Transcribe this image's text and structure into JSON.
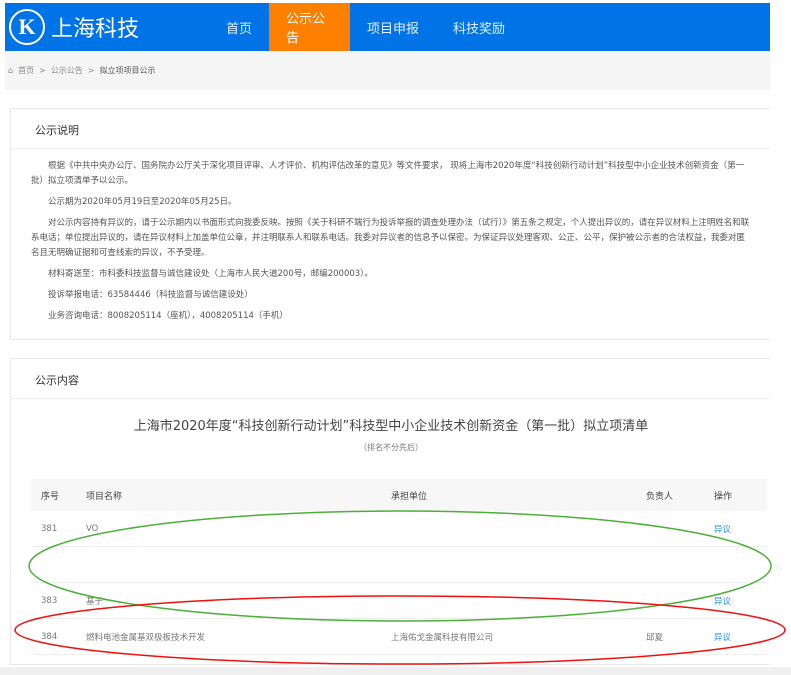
{
  "header": {
    "logo_letter": "K",
    "site_name": "上海科技",
    "nav": [
      "首页",
      "公示公告",
      "项目申报",
      "科技奖励"
    ],
    "active_nav": "公示公告"
  },
  "breadcrumb": [
    "首页",
    "公示公告",
    "拟立项项目公示"
  ],
  "notice": {
    "title": "公示说明",
    "paragraphs": [
      "根据《中共中央办公厅、国务院办公厅关于深化项目评审、人才评价、机构评估改革的意见》等文件要求， 现将上海市2020年度“科技创新行动计划”科技型中小企业技术创新资金（第一批）拟立项清单予以公示。",
      "公示期为2020年05月19日至2020年05月25日。",
      "对公示内容持有异议的，请于公示期内以书面形式向我委反映。按照《关于科研不端行为投诉举报的调查处理办法（试行）》第五条之规定，个人提出异议的，请在异议材料上注明姓名和联系电话；单位提出异议的，请在异议材料上加盖单位公章，并注明联系人和联系电话。我委对异议者的信息予以保密。为保证异议处理客观、公正、公平，保护被公示者的合法权益，我委对匿名且无明确证据和可查线索的异议，不予受理。",
      "材料寄送至：市科委科技监督与诚信建设处（上海市人民大道200号，邮编200003）。",
      "投诉举报电话：63584446（科技监督与诚信建设处）",
      "业务咨询电话：8008205114（座机），4008205114（手机）"
    ]
  },
  "content": {
    "title": "公示内容",
    "list_title": "上海市2020年度“科技创新行动计划”科技型中小企业技术创新资金（第一批）拟立项清单",
    "list_subtitle": "（排名不分先后）",
    "columns": [
      "序号",
      "项目名称",
      "承担单位",
      "负责人",
      "操作"
    ],
    "rows": [
      {
        "no": "381",
        "name": "VO",
        "unit": "",
        "person": "",
        "action": "异议"
      },
      {
        "no": "",
        "name": "",
        "unit": "",
        "person": "",
        "action": ""
      },
      {
        "no": "383",
        "name": "基于",
        "unit": "",
        "person": "",
        "action": "异议"
      },
      {
        "no": "384",
        "name": "燃料电池金属基双极板技术开发",
        "unit": "上海佑戈金属科技有限公司",
        "person": "邱夏",
        "action": "异议"
      }
    ]
  },
  "annotations": {
    "green_ellipse": "#4caf3a",
    "red_ellipse": "#ee1111"
  },
  "colors": {
    "nav": "#0073e6",
    "active": "#ff7f00",
    "link": "#2a8be8"
  }
}
